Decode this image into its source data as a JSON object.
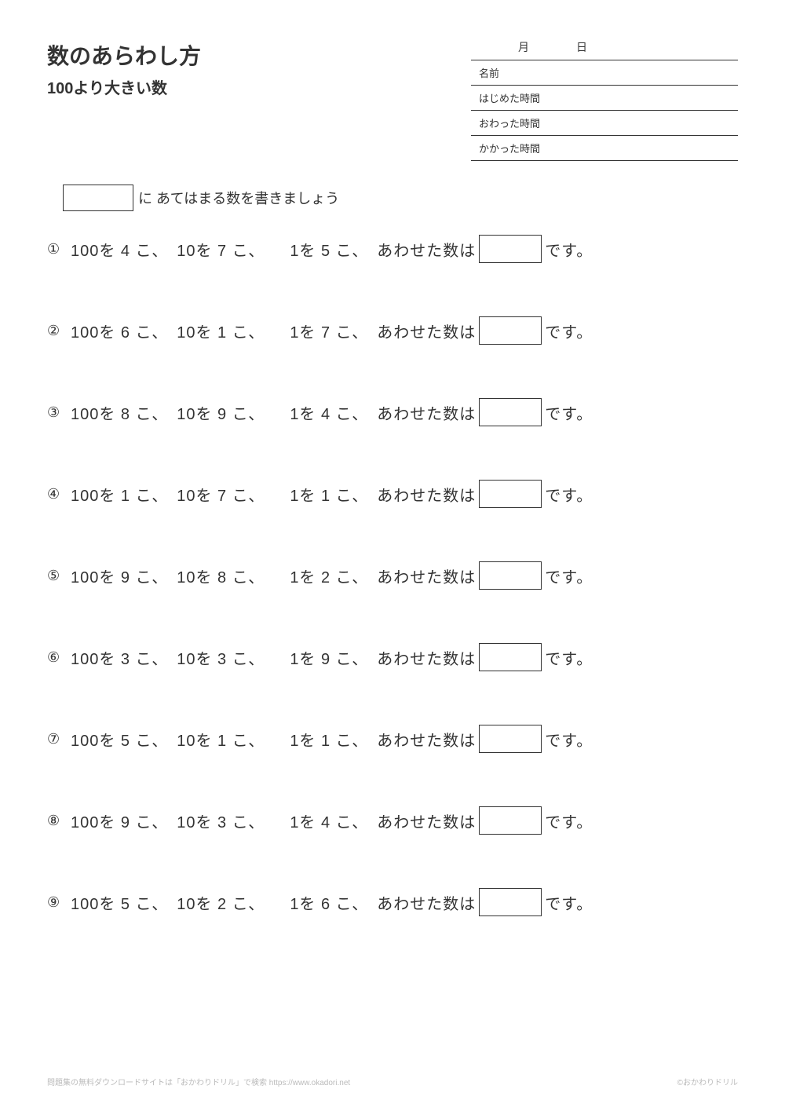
{
  "header": {
    "main_title": "数のあらわし方",
    "sub_title": "100より大きい数",
    "date_month": "月",
    "date_day": "日",
    "label_name": "名前",
    "label_start": "はじめた時間",
    "label_end": "おわった時間",
    "label_elapsed": "かかった時間"
  },
  "instruction": {
    "text": "に  あてはまる数を書きましょう"
  },
  "problem_template": {
    "hundreds_prefix": "100を ",
    "tens_prefix": "10を ",
    "ones_prefix": "1を ",
    "count_suffix": " こ、",
    "combined": "あわせた数は",
    "desu": "です。"
  },
  "problems": [
    {
      "num": "①",
      "h": "4",
      "t": "7",
      "o": "5"
    },
    {
      "num": "②",
      "h": "6",
      "t": "1",
      "o": "7"
    },
    {
      "num": "③",
      "h": "8",
      "t": "9",
      "o": "4"
    },
    {
      "num": "④",
      "h": "1",
      "t": "7",
      "o": "1"
    },
    {
      "num": "⑤",
      "h": "9",
      "t": "8",
      "o": "2"
    },
    {
      "num": "⑥",
      "h": "3",
      "t": "3",
      "o": "9"
    },
    {
      "num": "⑦",
      "h": "5",
      "t": "1",
      "o": "1"
    },
    {
      "num": "⑧",
      "h": "9",
      "t": "3",
      "o": "4"
    },
    {
      "num": "⑨",
      "h": "5",
      "t": "2",
      "o": "6"
    }
  ],
  "footer": {
    "left": "問題集の無料ダウンロードサイトは「おかわりドリル」で検索  https://www.okadori.net",
    "right": "©おかわりドリル"
  },
  "style": {
    "page_bg": "#ffffff",
    "text_color": "#333333",
    "border_color": "#333333",
    "footer_color": "#bbbbbb",
    "title_fontsize": 28,
    "subtitle_fontsize": 20,
    "body_fontsize": 20,
    "info_fontsize": 13,
    "footer_fontsize": 10,
    "answer_box_w": 80,
    "answer_box_h": 36
  }
}
